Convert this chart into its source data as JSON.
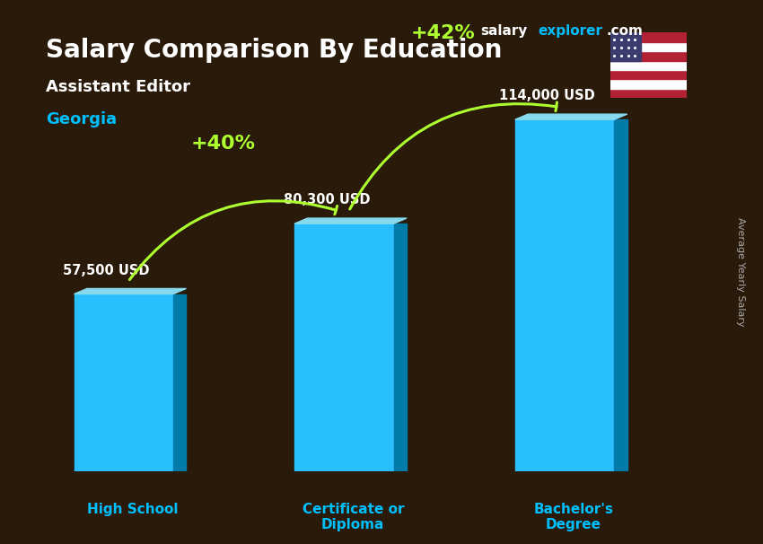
{
  "title": "Salary Comparison By Education",
  "subtitle": "Assistant Editor",
  "location": "Georgia",
  "ylabel": "Average Yearly Salary",
  "categories": [
    "High School",
    "Certificate or\nDiploma",
    "Bachelor's\nDegree"
  ],
  "values": [
    57500,
    80300,
    114000
  ],
  "value_labels": [
    "57,500 USD",
    "80,300 USD",
    "114,000 USD"
  ],
  "bar_color": "#00BFFF",
  "bar_color_top": "#87CEEB",
  "bar_color_side": "#0099CC",
  "pct_labels": [
    "+40%",
    "+42%"
  ],
  "pct_color": "#ADFF2F",
  "background_color": "#2a1a0a",
  "title_color": "#FFFFFF",
  "subtitle_color": "#FFFFFF",
  "location_color": "#00BFFF",
  "value_label_color": "#FFFFFF",
  "xlabel_color": "#00BFFF",
  "brand_salary": "salary",
  "brand_explorer": "explorer",
  "brand_com": ".com",
  "arrow_color": "#ADFF2F",
  "ylim": [
    0,
    140000
  ],
  "bar_width": 0.45
}
